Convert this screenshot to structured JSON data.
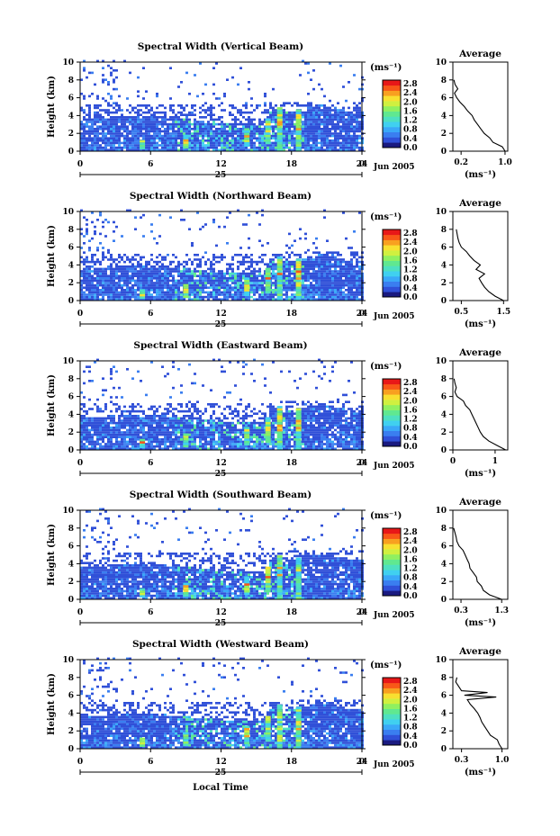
{
  "figure": {
    "x_axis_label": "Local Time",
    "date_label": "Jun 2005",
    "day_label": "25",
    "unit_label": "(ms⁻¹)",
    "avg_xlabel": "(ms⁻¹)"
  },
  "colors": [
    "#1a1a80",
    "#3050d8",
    "#3a7ef0",
    "#3aa8f8",
    "#40d0f0",
    "#4ee0c0",
    "#60e890",
    "#90f060",
    "#d0f040",
    "#f8e030",
    "#f8a020",
    "#f85818",
    "#e81818"
  ],
  "chart_data": [
    {
      "type": "heatmap",
      "title": "Spectral Width (Vertical Beam)",
      "ylabel": "Height (km)",
      "x_ticks": [
        "0",
        "6",
        "12",
        "18",
        "24",
        "0"
      ],
      "y_ticks": [
        "0",
        "2",
        "4",
        "6",
        "8",
        "10"
      ],
      "colorbar_ticks": [
        "0.0",
        "0.4",
        "0.8",
        "1.2",
        "1.6",
        "2.0",
        "2.4",
        "2.8"
      ],
      "xlim": [
        0,
        24
      ],
      "ylim": [
        0,
        10
      ],
      "average": {
        "title": "Average",
        "x_ticks": [
          "0.2",
          "1.0"
        ],
        "y_ticks": [
          "0",
          "2",
          "4",
          "6",
          "8",
          "10"
        ],
        "x_tick_values": [
          0.2,
          1.0
        ],
        "xlim": [
          0.05,
          1.05
        ],
        "height_km": [
          0,
          0.5,
          1,
          1.5,
          2,
          2.5,
          3,
          3.5,
          4,
          4.5,
          5,
          5.5,
          6,
          6.5,
          7,
          7.5,
          8
        ],
        "width_ms": [
          1.0,
          0.95,
          0.78,
          0.72,
          0.62,
          0.56,
          0.5,
          0.44,
          0.4,
          0.32,
          0.26,
          0.18,
          0.12,
          0.08,
          0.14,
          0.09,
          0.07
        ]
      }
    },
    {
      "type": "heatmap",
      "title": "Spectral Width (Northward Beam)",
      "ylabel": "Height (km)",
      "x_ticks": [
        "0",
        "6",
        "12",
        "18",
        "24",
        "0"
      ],
      "y_ticks": [
        "0",
        "2",
        "4",
        "6",
        "8",
        "10"
      ],
      "colorbar_ticks": [
        "0.0",
        "0.4",
        "0.8",
        "1.2",
        "1.6",
        "2.0",
        "2.4",
        "2.8"
      ],
      "xlim": [
        0,
        24
      ],
      "ylim": [
        0,
        10
      ],
      "average": {
        "title": "Average",
        "x_ticks": [
          "0.5",
          "1.5"
        ],
        "y_ticks": [
          "0",
          "2",
          "4",
          "6",
          "8",
          "10"
        ],
        "x_tick_values": [
          0.5,
          1.5
        ],
        "xlim": [
          0.3,
          1.6
        ],
        "height_km": [
          0,
          0.5,
          1,
          1.5,
          2,
          2.5,
          3,
          3.5,
          4,
          4.5,
          5,
          5.5,
          6,
          6.5,
          7,
          7.5,
          8
        ],
        "width_ms": [
          1.5,
          1.3,
          1.15,
          1.05,
          0.98,
          0.92,
          1.05,
          0.85,
          0.95,
          0.8,
          0.7,
          0.62,
          0.5,
          0.45,
          0.42,
          0.4,
          0.38
        ]
      }
    },
    {
      "type": "heatmap",
      "title": "Spectral Width (Eastward Beam)",
      "ylabel": "Height (km)",
      "x_ticks": [
        "0",
        "6",
        "12",
        "18",
        "24",
        "0"
      ],
      "y_ticks": [
        "0",
        "2",
        "4",
        "6",
        "8",
        "10"
      ],
      "colorbar_ticks": [
        "0.0",
        "0.4",
        "0.8",
        "1.2",
        "1.6",
        "2.0",
        "2.4",
        "2.8"
      ],
      "xlim": [
        0,
        24
      ],
      "ylim": [
        0,
        10
      ],
      "average": {
        "title": "Average",
        "x_ticks": [
          "0",
          "1"
        ],
        "y_ticks": [
          "0",
          "2",
          "4",
          "6",
          "8",
          "10"
        ],
        "x_tick_values": [
          0,
          1
        ],
        "xlim": [
          0,
          1.3
        ],
        "height_km": [
          0,
          0.5,
          1,
          1.5,
          2,
          2.5,
          3,
          3.5,
          4,
          4.5,
          5,
          5.5,
          6,
          6.5,
          7,
          7.5,
          8
        ],
        "width_ms": [
          1.25,
          1.05,
          0.85,
          0.72,
          0.65,
          0.6,
          0.55,
          0.5,
          0.45,
          0.4,
          0.3,
          0.25,
          0.1,
          0.05,
          0.08,
          0.05,
          0.03
        ]
      }
    },
    {
      "type": "heatmap",
      "title": "Spectral Width (Southward Beam)",
      "ylabel": "Height (km)",
      "x_ticks": [
        "0",
        "6",
        "12",
        "18",
        "24",
        "0"
      ],
      "y_ticks": [
        "0",
        "2",
        "4",
        "6",
        "8",
        "10"
      ],
      "colorbar_ticks": [
        "0.0",
        "0.4",
        "0.8",
        "1.2",
        "1.6",
        "2.0",
        "2.4",
        "2.8"
      ],
      "xlim": [
        0,
        24
      ],
      "ylim": [
        0,
        10
      ],
      "average": {
        "title": "Average",
        "x_ticks": [
          "0.3",
          "1.3"
        ],
        "y_ticks": [
          "0",
          "2",
          "4",
          "6",
          "8",
          "10"
        ],
        "x_tick_values": [
          0.3,
          1.3
        ],
        "xlim": [
          0.1,
          1.45
        ],
        "height_km": [
          0,
          0.5,
          1,
          1.5,
          2,
          2.5,
          3,
          3.5,
          4,
          4.5,
          5,
          5.5,
          6,
          6.5,
          7,
          7.5,
          8
        ],
        "width_ms": [
          1.3,
          1.0,
          0.85,
          0.8,
          0.7,
          0.68,
          0.6,
          0.52,
          0.5,
          0.45,
          0.4,
          0.35,
          0.25,
          0.2,
          0.18,
          0.15,
          0.12
        ]
      }
    },
    {
      "type": "heatmap",
      "title": "Spectral Width (Westward Beam)",
      "ylabel": "Height (km)",
      "x_ticks": [
        "0",
        "6",
        "12",
        "18",
        "24",
        "0"
      ],
      "y_ticks": [
        "0",
        "2",
        "4",
        "6",
        "8",
        "10"
      ],
      "colorbar_ticks": [
        "0.0",
        "0.4",
        "0.8",
        "1.2",
        "1.6",
        "2.0",
        "2.4",
        "2.8"
      ],
      "xlim": [
        0,
        24
      ],
      "ylim": [
        0,
        10
      ],
      "average": {
        "title": "Average",
        "x_ticks": [
          "0.3",
          "1.0"
        ],
        "y_ticks": [
          "0",
          "2",
          "4",
          "6",
          "8",
          "10"
        ],
        "x_tick_values": [
          0.3,
          1.0
        ],
        "xlim": [
          0.15,
          1.1
        ],
        "height_km": [
          0,
          0.5,
          1,
          1.5,
          2,
          2.5,
          3,
          3.5,
          4,
          4.5,
          5,
          5.5,
          5.8,
          6,
          6.3,
          6.5,
          7,
          7.5,
          8
        ],
        "width_ms": [
          1.0,
          0.95,
          0.92,
          0.8,
          0.75,
          0.7,
          0.65,
          0.62,
          0.58,
          0.52,
          0.45,
          0.4,
          0.9,
          0.35,
          0.75,
          0.3,
          0.25,
          0.2,
          0.22
        ]
      }
    }
  ]
}
